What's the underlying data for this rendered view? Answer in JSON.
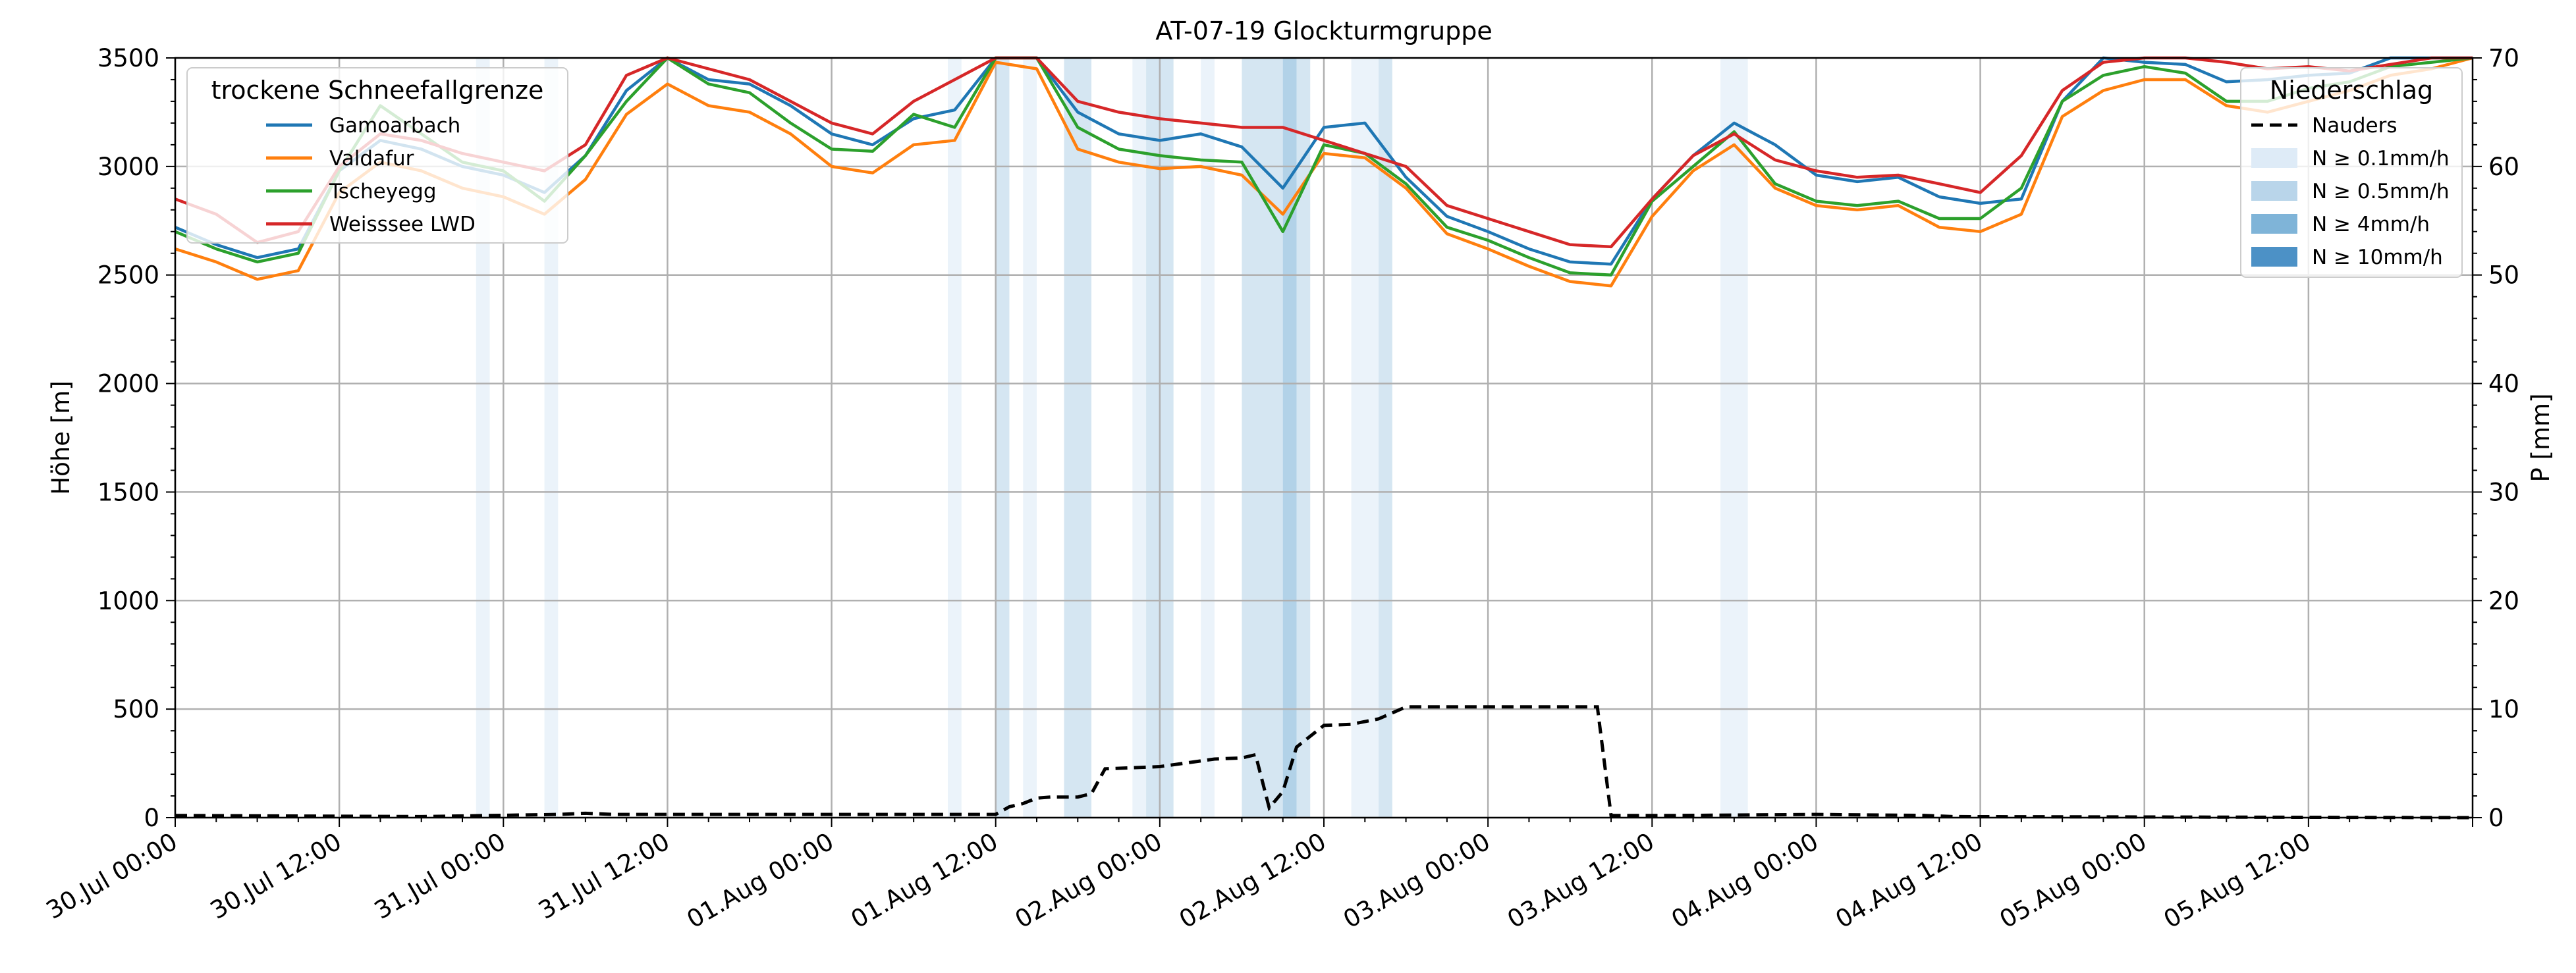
{
  "chart_data": {
    "type": "line",
    "title": "AT-07-19 Glockturmgruppe",
    "ylabel_left": "Höhe [m]",
    "ylabel_right": "P [mm]",
    "ylim_left": [
      0,
      3500
    ],
    "ylim_right": [
      0,
      70
    ],
    "xlim_hours": [
      0,
      168
    ],
    "yticks_left": [
      "0",
      "500",
      "1000",
      "1500",
      "2000",
      "2500",
      "3000",
      "3500"
    ],
    "yticks_right": [
      "0",
      "10",
      "20",
      "30",
      "40",
      "50",
      "60",
      "70"
    ],
    "xticks": [
      "30.Jul 00:00",
      "30.Jul 12:00",
      "31.Jul 00:00",
      "31.Jul 12:00",
      "01.Aug 00:00",
      "01.Aug 12:00",
      "02.Aug 00:00",
      "02.Aug 12:00",
      "03.Aug 00:00",
      "03.Aug 12:00",
      "04.Aug 00:00",
      "04.Aug 12:00",
      "05.Aug 00:00",
      "05.Aug 12:00"
    ],
    "grid": true,
    "legend_left": {
      "title": "trockene Schneefallgrenze",
      "placement": "top-left"
    },
    "legend_right": {
      "title": "Niederschlag",
      "placement": "top-right",
      "line_label": "Nauders",
      "band_labels": [
        "N ≥ 0.1mm/h",
        "N ≥ 0.5mm/h",
        "N ≥ 4mm/h",
        "N ≥ 10mm/h"
      ]
    },
    "colors": {
      "Gamoarbach": "#1f77b4",
      "Valdafur": "#ff7f0e",
      "Tscheyegg": "#2ca02c",
      "Weisssee LWD": "#d62728",
      "Nauders": "#000000",
      "band_levels": [
        "#deebf7",
        "#b9d5ea",
        "#7fb4d8",
        "#4c91c6"
      ]
    },
    "series": [
      {
        "name": "Gamoarbach",
        "x": [
          0,
          3,
          6,
          9,
          12,
          15,
          18,
          21,
          24,
          27,
          30,
          33,
          36,
          39,
          42,
          45,
          48,
          51,
          54,
          57,
          60,
          63,
          66,
          69,
          72,
          75,
          78,
          81,
          84,
          87,
          90,
          93,
          96,
          99,
          102,
          105,
          108,
          111,
          114,
          117,
          120,
          123,
          126,
          129,
          132,
          135,
          138,
          141,
          144,
          147,
          150,
          153,
          156,
          159,
          162,
          165,
          168
        ],
        "y": [
          2720,
          2640,
          2580,
          2620,
          2980,
          3120,
          3080,
          3000,
          2960,
          2880,
          3050,
          3350,
          3520,
          3400,
          3380,
          3280,
          3150,
          3100,
          3220,
          3260,
          3550,
          3500,
          3250,
          3150,
          3120,
          3150,
          3090,
          2900,
          3180,
          3200,
          2950,
          2770,
          2700,
          2620,
          2560,
          2550,
          2850,
          3050,
          3200,
          3100,
          2960,
          2930,
          2950,
          2860,
          2830,
          2850,
          3300,
          3500,
          3480,
          3470,
          3390,
          3400,
          3420,
          3430,
          3500,
          3500,
          3500
        ]
      },
      {
        "name": "Valdafur",
        "x": [
          0,
          3,
          6,
          9,
          12,
          15,
          18,
          21,
          24,
          27,
          30,
          33,
          36,
          39,
          42,
          45,
          48,
          51,
          54,
          57,
          60,
          63,
          66,
          69,
          72,
          75,
          78,
          81,
          84,
          87,
          90,
          93,
          96,
          99,
          102,
          105,
          108,
          111,
          114,
          117,
          120,
          123,
          126,
          129,
          132,
          135,
          138,
          141,
          144,
          147,
          150,
          153,
          156,
          159,
          162,
          165,
          168
        ],
        "y": [
          2620,
          2560,
          2480,
          2520,
          2880,
          3020,
          2980,
          2900,
          2860,
          2780,
          2940,
          3240,
          3380,
          3280,
          3250,
          3150,
          3000,
          2970,
          3100,
          3120,
          3480,
          3450,
          3080,
          3020,
          2990,
          3000,
          2960,
          2780,
          3060,
          3040,
          2900,
          2690,
          2620,
          2540,
          2470,
          2450,
          2770,
          2980,
          3100,
          2900,
          2820,
          2800,
          2820,
          2720,
          2700,
          2780,
          3230,
          3350,
          3400,
          3400,
          3280,
          3250,
          3300,
          3350,
          3420,
          3450,
          3500
        ]
      },
      {
        "name": "Tscheyegg",
        "x": [
          0,
          3,
          6,
          9,
          12,
          15,
          18,
          21,
          24,
          27,
          30,
          33,
          36,
          39,
          42,
          45,
          48,
          51,
          54,
          57,
          60,
          63,
          66,
          69,
          72,
          75,
          78,
          81,
          84,
          87,
          90,
          93,
          96,
          99,
          102,
          105,
          108,
          111,
          114,
          117,
          120,
          123,
          126,
          129,
          132,
          135,
          138,
          141,
          144,
          147,
          150,
          153,
          156,
          159,
          162,
          165,
          168
        ],
        "y": [
          2700,
          2620,
          2560,
          2600,
          2980,
          3280,
          3150,
          3020,
          2980,
          2840,
          3050,
          3300,
          3520,
          3380,
          3340,
          3200,
          3080,
          3070,
          3240,
          3180,
          3520,
          3500,
          3180,
          3080,
          3050,
          3030,
          3020,
          2700,
          3100,
          3060,
          2920,
          2720,
          2660,
          2580,
          2510,
          2500,
          2840,
          3000,
          3160,
          2920,
          2840,
          2820,
          2840,
          2760,
          2760,
          2900,
          3300,
          3420,
          3460,
          3430,
          3300,
          3300,
          3360,
          3390,
          3460,
          3480,
          3500
        ]
      },
      {
        "name": "Weisssee LWD",
        "x": [
          0,
          3,
          6,
          9,
          12,
          15,
          18,
          21,
          24,
          27,
          30,
          33,
          36,
          39,
          42,
          45,
          48,
          51,
          54,
          57,
          60,
          63,
          66,
          69,
          72,
          75,
          78,
          81,
          84,
          87,
          90,
          93,
          96,
          99,
          102,
          105,
          108,
          111,
          114,
          117,
          120,
          123,
          126,
          129,
          132,
          135,
          138,
          141,
          144,
          147,
          150,
          153,
          156,
          159,
          162,
          165,
          168
        ],
        "y": [
          2850,
          2780,
          2650,
          2700,
          3000,
          3150,
          3120,
          3060,
          3020,
          2980,
          3100,
          3420,
          3500,
          3450,
          3400,
          3300,
          3200,
          3150,
          3300,
          3400,
          3550,
          3500,
          3300,
          3250,
          3220,
          3200,
          3180,
          3180,
          3120,
          3060,
          3000,
          2820,
          2760,
          2700,
          2640,
          2630,
          2850,
          3050,
          3150,
          3030,
          2980,
          2950,
          2960,
          2920,
          2880,
          3050,
          3350,
          3480,
          3500,
          3500,
          3480,
          3450,
          3460,
          3440,
          3470,
          3500,
          3500
        ]
      }
    ],
    "precip": {
      "name": "Nauders",
      "x": [
        0,
        18,
        28,
        30,
        32,
        60,
        61,
        62,
        63,
        64,
        66,
        67,
        68,
        70,
        72,
        76,
        78,
        79,
        80,
        81,
        82,
        84,
        86,
        88,
        90,
        104,
        105,
        110,
        120,
        128,
        130,
        168
      ],
      "y": [
        0.2,
        0.1,
        0.3,
        0.4,
        0.3,
        0.3,
        1,
        1.3,
        1.8,
        1.9,
        1.9,
        2.2,
        4.5,
        4.6,
        4.7,
        5.4,
        5.5,
        5.8,
        0.9,
        2.4,
        6.5,
        8.5,
        8.6,
        9.1,
        10.2,
        10.2,
        0.2,
        0.2,
        0.3,
        0.2,
        0.1,
        0
      ]
    },
    "precip_bands": [
      {
        "x0": 22,
        "x1": 23,
        "level": 0
      },
      {
        "x0": 27,
        "x1": 28,
        "level": 0
      },
      {
        "x0": 56.5,
        "x1": 57.5,
        "level": 0
      },
      {
        "x0": 60,
        "x1": 61,
        "level": 1
      },
      {
        "x0": 62,
        "x1": 63,
        "level": 0
      },
      {
        "x0": 65,
        "x1": 67,
        "level": 1
      },
      {
        "x0": 70,
        "x1": 71,
        "level": 0
      },
      {
        "x0": 71,
        "x1": 73,
        "level": 1
      },
      {
        "x0": 75,
        "x1": 76,
        "level": 0
      },
      {
        "x0": 78,
        "x1": 81,
        "level": 1
      },
      {
        "x0": 81,
        "x1": 82,
        "level": 2
      },
      {
        "x0": 82,
        "x1": 83,
        "level": 1
      },
      {
        "x0": 86,
        "x1": 88,
        "level": 0
      },
      {
        "x0": 88,
        "x1": 89,
        "level": 1
      },
      {
        "x0": 113,
        "x1": 115,
        "level": 0
      }
    ]
  }
}
